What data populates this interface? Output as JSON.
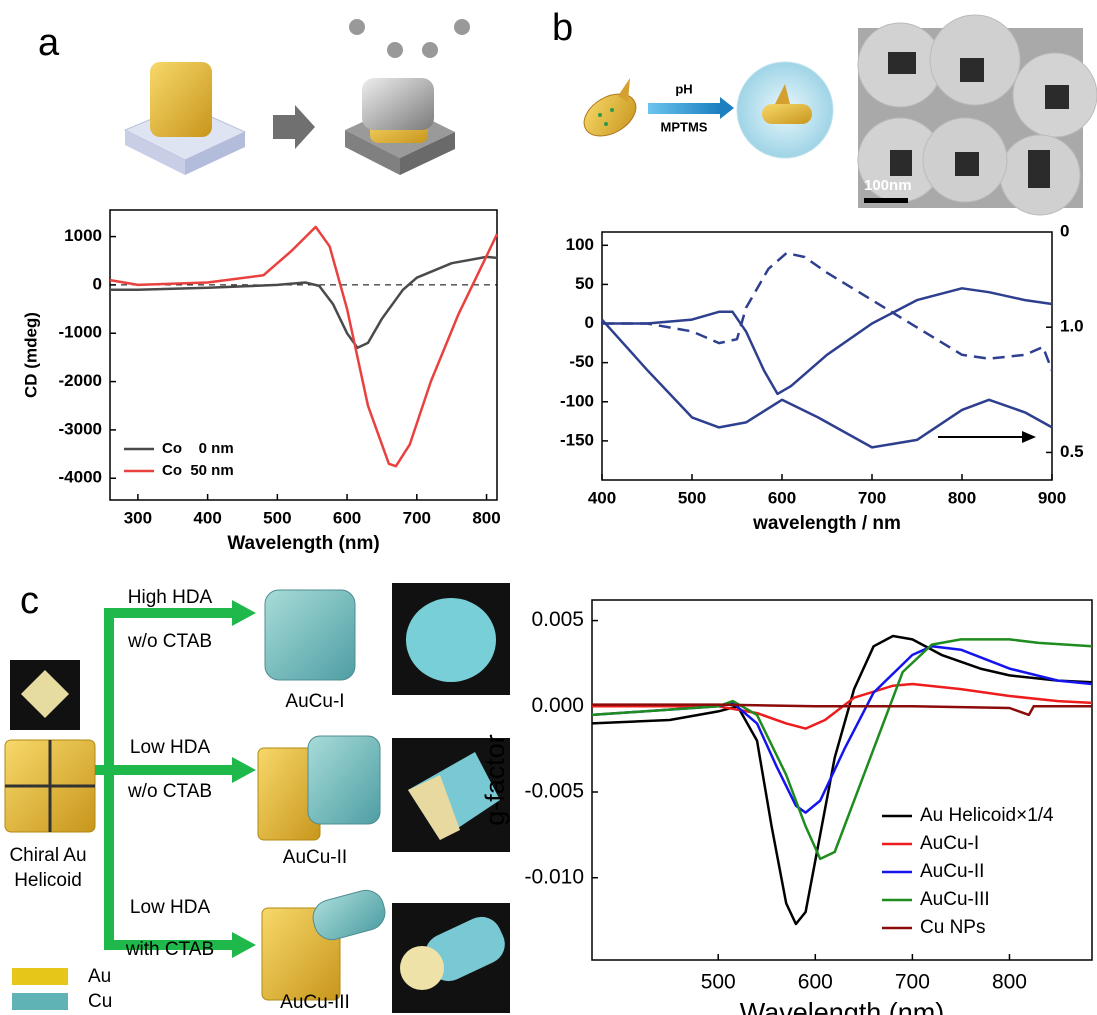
{
  "panels": [
    "a",
    "b",
    "c"
  ],
  "scheme_b": {
    "step_top": "pH",
    "step_bottom": "MPTMS",
    "scale_bar": "100nm"
  },
  "scheme_c": {
    "start": [
      "Chiral Au",
      "Helicoid"
    ],
    "routes": [
      {
        "top": "High HDA",
        "bottom": "w/o CTAB",
        "product": "AuCu-I"
      },
      {
        "top": "Low HDA",
        "bottom": "w/o CTAB",
        "product": "AuCu-II"
      },
      {
        "top": "Low HDA",
        "bottom": "with CTAB",
        "product": "AuCu-III"
      }
    ],
    "legend": [
      {
        "name": "Au",
        "color": "#e6c619"
      },
      {
        "name": "Cu",
        "color": "#5fb3b5"
      }
    ]
  },
  "chart_data": [
    {
      "type": "line",
      "xlabel": "Wavelength (nm)",
      "ylabel": "CD (mdeg)",
      "xlim": [
        260,
        815
      ],
      "ylim": [
        -4450,
        1550
      ],
      "xticks": [
        300,
        400,
        500,
        600,
        700,
        800
      ],
      "yticks": [
        1000,
        0,
        -1000,
        -2000,
        -3000,
        -4000
      ],
      "zero_line": true,
      "legend": "lower left",
      "series": [
        {
          "name": "Co    0 nm",
          "color": "#4a4a4a",
          "x": [
            260,
            300,
            400,
            500,
            540,
            560,
            580,
            600,
            615,
            630,
            650,
            680,
            700,
            750,
            800,
            815
          ],
          "values": [
            -100,
            -100,
            -60,
            0,
            50,
            -20,
            -400,
            -1000,
            -1300,
            -1200,
            -700,
            -100,
            150,
            450,
            580,
            560
          ]
        },
        {
          "name": "Co  50 nm",
          "color": "#e8413e",
          "x": [
            260,
            300,
            400,
            480,
            520,
            555,
            575,
            600,
            630,
            660,
            670,
            690,
            720,
            760,
            790,
            815
          ],
          "values": [
            100,
            0,
            50,
            200,
            700,
            1200,
            800,
            -500,
            -2500,
            -3700,
            -3750,
            -3300,
            -2000,
            -600,
            300,
            1050
          ]
        }
      ]
    },
    {
      "type": "line",
      "xlabel": "wavelength / nm",
      "xlim": [
        400,
        900
      ],
      "ylim": [
        -200,
        117
      ],
      "y2lim": [
        0.39,
        1.38
      ],
      "xticks": [
        400,
        500,
        600,
        700,
        800,
        900
      ],
      "yticks": [
        100,
        50,
        0,
        -50,
        -100,
        -150
      ],
      "y2ticks": [
        {
          "value": 1,
          "label": "1.0"
        },
        0.5
      ],
      "y2_top_label": "0",
      "series": [
        {
          "color": "#2e3f8f",
          "x": [
            400,
            450,
            500,
            530,
            545,
            560,
            580,
            595,
            610,
            650,
            700,
            750,
            800,
            830,
            870,
            900
          ],
          "values": [
            0,
            0,
            5,
            15,
            15,
            -10,
            -60,
            -90,
            -80,
            -40,
            0,
            30,
            45,
            40,
            30,
            25
          ]
        },
        {
          "color": "#2e3f8f",
          "dash": true,
          "x": [
            400,
            450,
            500,
            530,
            550,
            560,
            585,
            605,
            625,
            650,
            700,
            750,
            800,
            830,
            870,
            890,
            900
          ],
          "values": [
            0,
            0,
            -10,
            -25,
            -20,
            20,
            70,
            90,
            85,
            65,
            30,
            -5,
            -40,
            -45,
            -40,
            -30,
            -60
          ]
        },
        {
          "color": "#2e3f8f",
          "axis": "y2",
          "x": [
            400,
            450,
            500,
            530,
            560,
            600,
            640,
            700,
            750,
            800,
            830,
            870,
            900
          ],
          "values": [
            1.03,
            0.83,
            0.64,
            0.6,
            0.62,
            0.71,
            0.64,
            0.52,
            0.55,
            0.67,
            0.71,
            0.66,
            0.6
          ]
        }
      ]
    },
    {
      "type": "line",
      "xlabel": "Wavelength (nm)",
      "ylabel": "g-factor",
      "xlim": [
        370,
        885
      ],
      "ylim": [
        -0.0148,
        0.0062
      ],
      "xticks": [
        500,
        600,
        700,
        800
      ],
      "yticks": [
        0.005,
        {
          "value": 0,
          "label": "0.000"
        },
        -0.005,
        {
          "value": -0.01,
          "label": "-0.010"
        }
      ],
      "legend": "lower right",
      "series": [
        {
          "name": "Au Helicoid×1/4",
          "color": "#000000",
          "x": [
            370,
            450,
            500,
            520,
            540,
            555,
            570,
            580,
            590,
            600,
            620,
            640,
            660,
            680,
            700,
            730,
            770,
            800,
            850,
            885
          ],
          "values": [
            -0.001,
            -0.0008,
            -0.0003,
            0,
            -0.002,
            -0.007,
            -0.0115,
            -0.0127,
            -0.012,
            -0.009,
            -0.003,
            0.001,
            0.0035,
            0.0041,
            0.0039,
            0.003,
            0.0022,
            0.0018,
            0.0015,
            0.0014
          ]
        },
        {
          "name": "AuCu-I",
          "color": "#ee1c1c",
          "x": [
            370,
            500,
            540,
            570,
            590,
            610,
            640,
            680,
            700,
            750,
            800,
            850,
            885
          ],
          "values": [
            0,
            0,
            -0.0004,
            -0.001,
            -0.0013,
            -0.0008,
            0.0005,
            0.0012,
            0.0013,
            0.001,
            0.0006,
            0.0003,
            0.0002
          ]
        },
        {
          "name": "AuCu-II",
          "color": "#1414ee",
          "x": [
            370,
            500,
            515,
            540,
            560,
            580,
            590,
            605,
            630,
            660,
            700,
            720,
            750,
            800,
            850,
            885
          ],
          "values": [
            -0.0005,
            0,
            0.0002,
            -0.001,
            -0.0035,
            -0.0058,
            -0.0062,
            -0.0055,
            -0.0025,
            0.0008,
            0.003,
            0.0035,
            0.0033,
            0.0022,
            0.0015,
            0.0013
          ]
        },
        {
          "name": "AuCu-III",
          "color": "#1e8c1e",
          "x": [
            370,
            500,
            515,
            540,
            570,
            590,
            605,
            620,
            650,
            690,
            720,
            750,
            800,
            830,
            885
          ],
          "values": [
            -0.0005,
            0,
            0.0003,
            -0.0005,
            -0.004,
            -0.007,
            -0.0089,
            -0.0085,
            -0.004,
            0.002,
            0.0036,
            0.0039,
            0.0039,
            0.0037,
            0.0035
          ]
        },
        {
          "name": "Cu NPs",
          "color": "#8b0a0a",
          "x": [
            370,
            500,
            600,
            700,
            800,
            820,
            825,
            850,
            885
          ],
          "values": [
            0.0001,
            0.0001,
            0,
            0,
            -0.0001,
            -0.0005,
            0,
            0,
            0
          ]
        }
      ]
    }
  ]
}
